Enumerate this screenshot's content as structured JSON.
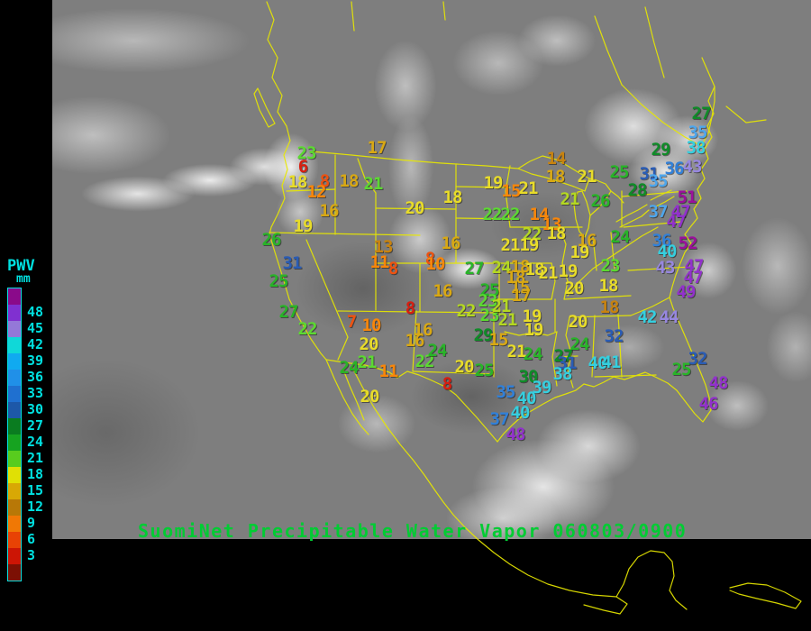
{
  "title": {
    "text": "SuomiNet Precipitable Water Vapor 060803/0900",
    "color": "#00cc33"
  },
  "legend": {
    "title": "PWV",
    "unit": "mm",
    "text_color": "#00e0e0",
    "labels": [
      "48",
      "45",
      "42",
      "39",
      "36",
      "33",
      "30",
      "27",
      "24",
      "21",
      "18",
      "15",
      "12",
      "9",
      "6",
      "3"
    ],
    "swatches": [
      "#8a0a8a",
      "#8030d0",
      "#9478d8",
      "#10d8d8",
      "#10aaf0",
      "#2090e8",
      "#1f70d0",
      "#1d58a8",
      "#0a7c20",
      "#16a320",
      "#58cc1e",
      "#e0e005",
      "#d8a805",
      "#b87807",
      "#f07805",
      "#e84205",
      "#cc1505",
      "#7c1004"
    ]
  },
  "map": {
    "outline_color": "#e8e800",
    "background_color": "#000000",
    "satellite_base_color": "#7e7e7e"
  },
  "palette": {
    "red": "#d81e10",
    "orangered": "#ee5210",
    "orange": "#f8860a",
    "darkgold": "#c8830f",
    "gold": "#d9a813",
    "yellow": "#e8dc2a",
    "yellowgreen": "#b4d822",
    "lightgreen": "#5cd932",
    "green": "#28b428",
    "darkgreen": "#0f8c28",
    "darkblue": "#2a5cb4",
    "blue": "#3180d8",
    "lightblue": "#4ea6ec",
    "cyan": "#35cfdf",
    "lavender": "#9787e0",
    "purple": "#9231cc",
    "magenta": "#9c0f9c"
  },
  "stations": [
    [
      17,
      418,
      164,
      "gold"
    ],
    [
      23,
      340,
      170,
      "lightgreen"
    ],
    [
      6,
      336,
      185,
      "red"
    ],
    [
      18,
      330,
      202,
      "yellow"
    ],
    [
      8,
      360,
      201,
      "orangered"
    ],
    [
      18,
      387,
      201,
      "gold"
    ],
    [
      21,
      414,
      204,
      "lightgreen"
    ],
    [
      12,
      351,
      213,
      "orange"
    ],
    [
      16,
      365,
      234,
      "gold"
    ],
    [
      19,
      336,
      251,
      "yellow"
    ],
    [
      26,
      301,
      266,
      "green"
    ],
    [
      20,
      460,
      231,
      "yellow"
    ],
    [
      18,
      502,
      219,
      "yellow"
    ],
    [
      19,
      547,
      203,
      "yellow"
    ],
    [
      15,
      567,
      212,
      "orange"
    ],
    [
      14,
      617,
      176,
      "darkgold"
    ],
    [
      18,
      616,
      196,
      "gold"
    ],
    [
      21,
      651,
      196,
      "yellow"
    ],
    [
      31,
      324,
      292,
      "darkblue"
    ],
    [
      25,
      309,
      312,
      "green"
    ],
    [
      27,
      320,
      346,
      "green"
    ],
    [
      22,
      341,
      365,
      "lightgreen"
    ],
    [
      13,
      425,
      274,
      "darkgold"
    ],
    [
      11,
      421,
      291,
      "orange"
    ],
    [
      8,
      436,
      298,
      "orangered"
    ],
    [
      8,
      477,
      287,
      "orangered"
    ],
    [
      10,
      483,
      293,
      "orange"
    ],
    [
      16,
      500,
      270,
      "gold"
    ],
    [
      7,
      390,
      357,
      "orangered"
    ],
    [
      10,
      412,
      361,
      "orange"
    ],
    [
      20,
      409,
      382,
      "yellow"
    ],
    [
      24,
      387,
      408,
      "green"
    ],
    [
      21,
      407,
      402,
      "lightgreen"
    ],
    [
      11,
      431,
      412,
      "orange"
    ],
    [
      20,
      410,
      440,
      "yellow"
    ],
    [
      8,
      455,
      342,
      "red"
    ],
    [
      16,
      491,
      323,
      "gold"
    ],
    [
      16,
      469,
      366,
      "gold"
    ],
    [
      16,
      460,
      378,
      "gold"
    ],
    [
      27,
      526,
      298,
      "green"
    ],
    [
      24,
      556,
      297,
      "yellowgreen"
    ],
    [
      18,
      577,
      296,
      "gold"
    ],
    [
      18,
      593,
      299,
      "yellow"
    ],
    [
      21,
      608,
      303,
      "yellow"
    ],
    [
      19,
      630,
      301,
      "yellow"
    ],
    [
      18,
      572,
      308,
      "gold"
    ],
    [
      15,
      577,
      319,
      "gold"
    ],
    [
      17,
      578,
      328,
      "gold"
    ],
    [
      25,
      543,
      322,
      "green"
    ],
    [
      23,
      541,
      334,
      "lightgreen"
    ],
    [
      22,
      517,
      345,
      "yellowgreen"
    ],
    [
      23,
      543,
      350,
      "lightgreen"
    ],
    [
      21,
      556,
      340,
      "yellowgreen"
    ],
    [
      21,
      563,
      355,
      "yellowgreen"
    ],
    [
      19,
      590,
      351,
      "yellow"
    ],
    [
      20,
      637,
      320,
      "yellow"
    ],
    [
      18,
      675,
      317,
      "yellow"
    ],
    [
      23,
      677,
      295,
      "lightgreen"
    ],
    [
      22,
      546,
      238,
      "lightgreen"
    ],
    [
      22,
      566,
      238,
      "lightgreen"
    ],
    [
      21,
      586,
      209,
      "yellow"
    ],
    [
      14,
      598,
      238,
      "orange"
    ],
    [
      13,
      612,
      249,
      "orange"
    ],
    [
      21,
      632,
      221,
      "yellowgreen"
    ],
    [
      26,
      666,
      223,
      "green"
    ],
    [
      22,
      590,
      260,
      "yellowgreen"
    ],
    [
      18,
      617,
      259,
      "yellow"
    ],
    [
      21,
      566,
      272,
      "yellow"
    ],
    [
      19,
      587,
      272,
      "yellow"
    ],
    [
      16,
      651,
      267,
      "gold"
    ],
    [
      19,
      643,
      280,
      "yellow"
    ],
    [
      24,
      688,
      263,
      "green"
    ],
    [
      29,
      536,
      372,
      "darkgreen"
    ],
    [
      15,
      553,
      377,
      "gold"
    ],
    [
      21,
      573,
      390,
      "yellow"
    ],
    [
      24,
      591,
      393,
      "green"
    ],
    [
      19,
      592,
      366,
      "yellow"
    ],
    [
      22,
      471,
      401,
      "lightgreen"
    ],
    [
      24,
      485,
      389,
      "green"
    ],
    [
      20,
      515,
      407,
      "yellow"
    ],
    [
      25,
      537,
      411,
      "green"
    ],
    [
      8,
      496,
      426,
      "red"
    ],
    [
      30,
      586,
      418,
      "darkgreen"
    ],
    [
      35,
      561,
      435,
      "blue"
    ],
    [
      39,
      601,
      430,
      "cyan"
    ],
    [
      40,
      584,
      442,
      "cyan"
    ],
    [
      40,
      577,
      458,
      "cyan"
    ],
    [
      37,
      554,
      465,
      "blue"
    ],
    [
      48,
      572,
      482,
      "purple"
    ],
    [
      27,
      625,
      395,
      "darkgreen"
    ],
    [
      31,
      629,
      403,
      "darkblue"
    ],
    [
      38,
      624,
      415,
      "cyan"
    ],
    [
      20,
      641,
      357,
      "yellow"
    ],
    [
      18,
      676,
      341,
      "darkgold"
    ],
    [
      32,
      681,
      373,
      "darkblue"
    ],
    [
      24,
      643,
      382,
      "green"
    ],
    [
      40,
      663,
      403,
      "cyan"
    ],
    [
      41,
      678,
      402,
      "cyan"
    ],
    [
      42,
      718,
      352,
      "cyan"
    ],
    [
      44,
      742,
      352,
      "lavender"
    ],
    [
      32,
      774,
      398,
      "darkblue"
    ],
    [
      25,
      756,
      410,
      "green"
    ],
    [
      48,
      797,
      425,
      "purple"
    ],
    [
      46,
      786,
      448,
      "purple"
    ],
    [
      27,
      778,
      126,
      "darkgreen"
    ],
    [
      35,
      774,
      147,
      "lightblue"
    ],
    [
      38,
      772,
      164,
      "cyan"
    ],
    [
      29,
      733,
      166,
      "darkgreen"
    ],
    [
      43,
      768,
      185,
      "lavender"
    ],
    [
      36,
      748,
      187,
      "blue"
    ],
    [
      31,
      720,
      193,
      "darkblue"
    ],
    [
      25,
      687,
      191,
      "green"
    ],
    [
      35,
      730,
      201,
      "lightblue"
    ],
    [
      28,
      707,
      211,
      "darkgreen"
    ],
    [
      51,
      762,
      219,
      "magenta"
    ],
    [
      37,
      730,
      235,
      "lightblue"
    ],
    [
      47,
      755,
      235,
      "purple"
    ],
    [
      47,
      750,
      246,
      "purple"
    ],
    [
      36,
      734,
      267,
      "blue"
    ],
    [
      52,
      763,
      270,
      "magenta"
    ],
    [
      40,
      740,
      279,
      "cyan"
    ],
    [
      43,
      738,
      297,
      "lavender"
    ],
    [
      47,
      770,
      295,
      "purple"
    ],
    [
      47,
      769,
      308,
      "purple"
    ],
    [
      49,
      761,
      324,
      "purple"
    ]
  ]
}
